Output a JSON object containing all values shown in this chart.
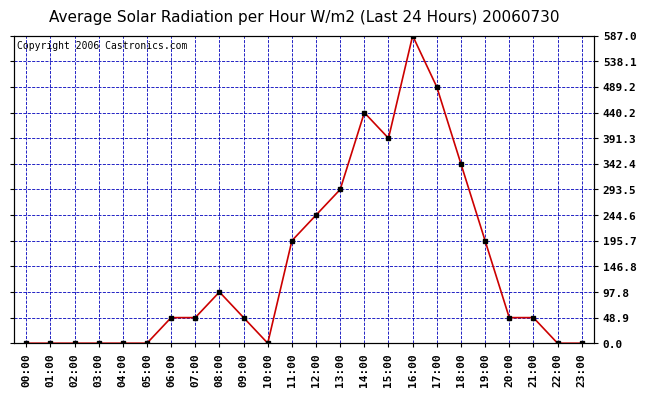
{
  "title": "Average Solar Radiation per Hour W/m2 (Last 24 Hours) 20060730",
  "copyright": "Copyright 2006 Castronics.com",
  "hours": [
    "00:00",
    "01:00",
    "02:00",
    "03:00",
    "04:00",
    "05:00",
    "06:00",
    "07:00",
    "08:00",
    "09:00",
    "10:00",
    "11:00",
    "12:00",
    "13:00",
    "14:00",
    "15:00",
    "16:00",
    "17:00",
    "18:00",
    "19:00",
    "20:00",
    "21:00",
    "22:00",
    "23:00"
  ],
  "values": [
    0.0,
    0.0,
    0.0,
    0.0,
    0.0,
    0.0,
    48.9,
    48.9,
    97.8,
    48.9,
    0.0,
    195.7,
    244.6,
    293.5,
    440.2,
    391.3,
    587.0,
    489.2,
    342.4,
    195.7,
    48.9,
    48.9,
    0.0,
    0.0
  ],
  "line_color": "#cc0000",
  "marker_color": "#000000",
  "bg_color": "#ffffff",
  "plot_bg_color": "#ffffff",
  "grid_color": "#0000bb",
  "ytick_labels": [
    "0.0",
    "48.9",
    "97.8",
    "146.8",
    "195.7",
    "244.6",
    "293.5",
    "342.4",
    "391.3",
    "440.2",
    "489.2",
    "538.1",
    "587.0"
  ],
  "ytick_values": [
    0.0,
    48.9,
    97.8,
    146.8,
    195.7,
    244.6,
    293.5,
    342.4,
    391.3,
    440.2,
    489.2,
    538.1,
    587.0
  ],
  "ymax": 587.0,
  "ymin": 0.0,
  "title_fontsize": 11,
  "tick_fontsize": 8,
  "copyright_fontsize": 7
}
